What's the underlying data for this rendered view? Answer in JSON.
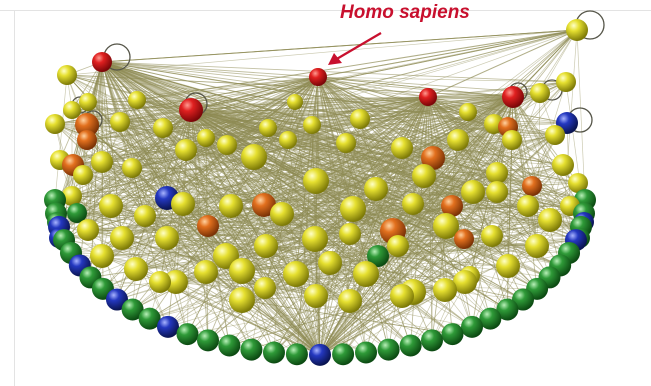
{
  "annotation": {
    "label": "Homo sapiens"
  },
  "colors": {
    "human_node": "#c0141c",
    "yellow_node": "#d8d21c",
    "orange_node": "#d8651a",
    "green_node": "#2a8c34",
    "blue_node": "#1f33a6",
    "edge": "#8f8c55",
    "annotation_text": "#c8102e"
  },
  "legend_semantics": {
    "node_colors": [
      "red",
      "yellow",
      "orange",
      "green",
      "blue"
    ],
    "highlighted_node_color": "red"
  }
}
